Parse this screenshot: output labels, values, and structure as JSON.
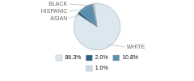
{
  "chart_data": {
    "type": "pie",
    "categories": [
      "WHITE",
      "ASIAN",
      "HISPANIC",
      "BLACK"
    ],
    "values": [
      86.3,
      2.0,
      10.8,
      1.0
    ],
    "value_labels": [
      "86.3%",
      "2.0%",
      "10.8%",
      "1.0%"
    ],
    "colors": [
      "#dce8f0",
      "#2a5f80",
      "#5b8fad",
      "#c8dce8"
    ],
    "legend": "bottom"
  }
}
